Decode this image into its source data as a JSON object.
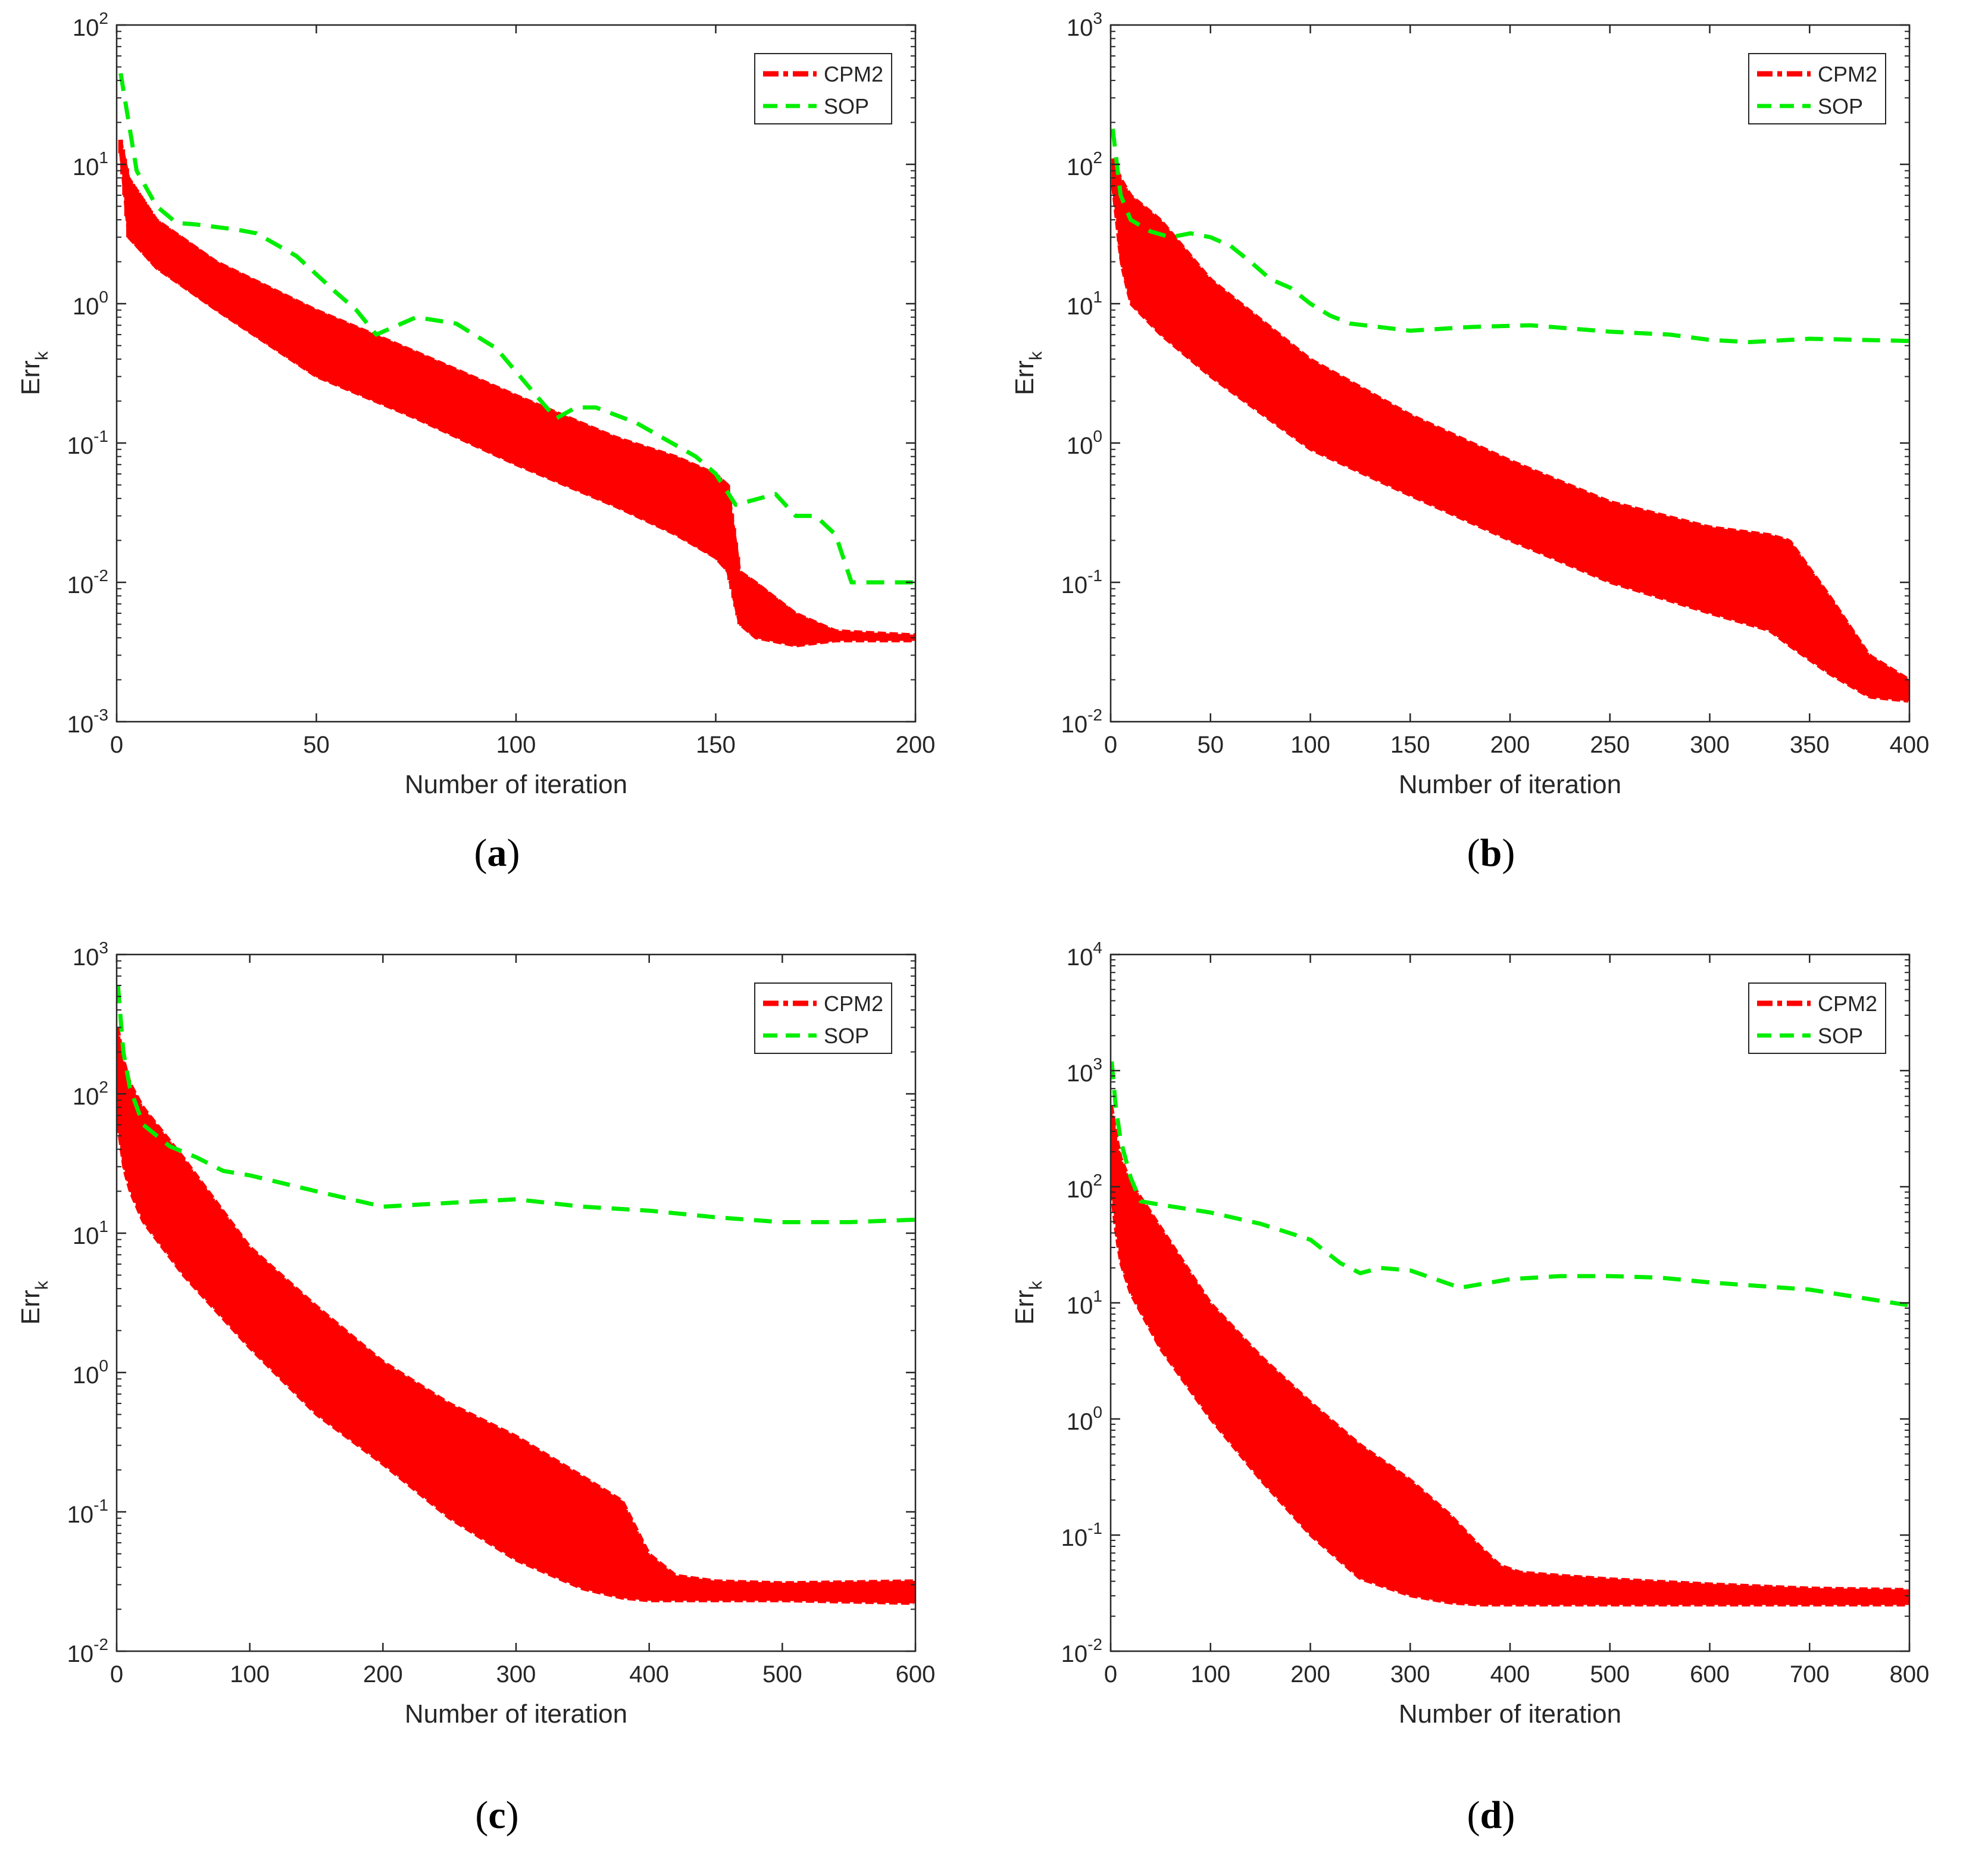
{
  "chart_data": [
    {
      "type": "line",
      "caption_letter": "a",
      "xlabel": "Number of iteration",
      "ylabel": "Err",
      "ylabel_subscript": "k",
      "xlim": [
        0,
        200
      ],
      "ylim": [
        0.001,
        100
      ],
      "yscale": "log",
      "xticks": [
        0,
        50,
        100,
        150,
        200
      ],
      "yticks": [
        {
          "base": "10",
          "exp": "-3",
          "value": 0.001
        },
        {
          "base": "10",
          "exp": "-2",
          "value": 0.01
        },
        {
          "base": "10",
          "exp": "-1",
          "value": 0.1
        },
        {
          "base": "10",
          "exp": "0",
          "value": 1
        },
        {
          "base": "10",
          "exp": "1",
          "value": 10
        },
        {
          "base": "10",
          "exp": "2",
          "value": 100
        }
      ],
      "legend_position": "top-right",
      "series": [
        {
          "name": "CPM2",
          "color": "#ff0000",
          "style": "band",
          "x": [
            1,
            3,
            10,
            25,
            50,
            75,
            100,
            125,
            140,
            150,
            153,
            156,
            160,
            170,
            180,
            200
          ],
          "upper": [
            15,
            8,
            4,
            2,
            0.9,
            0.45,
            0.22,
            0.11,
            0.08,
            0.06,
            0.05,
            0.012,
            0.01,
            0.006,
            0.0045,
            0.0042
          ],
          "lower": [
            12,
            3,
            1.8,
            0.9,
            0.3,
            0.15,
            0.07,
            0.035,
            0.022,
            0.015,
            0.012,
            0.005,
            0.004,
            0.0035,
            0.0038,
            0.0038
          ]
        },
        {
          "name": "SOP",
          "color": "#00ee00",
          "style": "dashed",
          "x": [
            1,
            5,
            10,
            15,
            20,
            30,
            35,
            45,
            55,
            60,
            65,
            75,
            85,
            95,
            105,
            110,
            115,
            120,
            130,
            145,
            150,
            155,
            165,
            170,
            175,
            180,
            184,
            200
          ],
          "y": [
            45,
            9,
            5,
            3.8,
            3.7,
            3.4,
            3.2,
            2.2,
            1.2,
            0.9,
            0.6,
            0.8,
            0.72,
            0.48,
            0.22,
            0.15,
            0.18,
            0.18,
            0.14,
            0.08,
            0.06,
            0.036,
            0.043,
            0.03,
            0.03,
            0.022,
            0.01,
            0.01
          ]
        }
      ]
    },
    {
      "type": "line",
      "caption_letter": "b",
      "xlabel": "Number of iteration",
      "ylabel": "Err",
      "ylabel_subscript": "k",
      "xlim": [
        0,
        400
      ],
      "ylim": [
        0.01,
        1000
      ],
      "yscale": "log",
      "xticks": [
        0,
        50,
        100,
        150,
        200,
        250,
        300,
        350,
        400
      ],
      "yticks": [
        {
          "base": "10",
          "exp": "-2",
          "value": 0.01
        },
        {
          "base": "10",
          "exp": "-1",
          "value": 0.1
        },
        {
          "base": "10",
          "exp": "0",
          "value": 1
        },
        {
          "base": "10",
          "exp": "1",
          "value": 10
        },
        {
          "base": "10",
          "exp": "2",
          "value": 100
        },
        {
          "base": "10",
          "exp": "3",
          "value": 1000
        }
      ],
      "legend_position": "top-right",
      "series": [
        {
          "name": "CPM2",
          "color": "#ff0000",
          "style": "band",
          "x": [
            1,
            5,
            10,
            25,
            50,
            100,
            150,
            200,
            250,
            300,
            330,
            340,
            360,
            380,
            400
          ],
          "upper": [
            110,
            80,
            60,
            40,
            15,
            4,
            1.6,
            0.75,
            0.38,
            0.25,
            0.22,
            0.2,
            0.08,
            0.03,
            0.02
          ],
          "lower": [
            70,
            20,
            10,
            6,
            3,
            0.9,
            0.42,
            0.2,
            0.1,
            0.06,
            0.045,
            0.035,
            0.022,
            0.015,
            0.014
          ]
        },
        {
          "name": "SOP",
          "color": "#00ee00",
          "style": "dashed",
          "x": [
            1,
            5,
            10,
            20,
            30,
            40,
            50,
            60,
            70,
            80,
            90,
            100,
            110,
            120,
            150,
            180,
            210,
            250,
            280,
            300,
            320,
            350,
            400
          ],
          "y": [
            180,
            60,
            40,
            33,
            30,
            32,
            30,
            26,
            20,
            15,
            13,
            10,
            8.2,
            7.2,
            6.4,
            6.8,
            7,
            6.3,
            6,
            5.5,
            5.3,
            5.6,
            5.4
          ]
        }
      ]
    },
    {
      "type": "line",
      "caption_letter": "c",
      "xlabel": "Number of iteration",
      "ylabel": "Err",
      "ylabel_subscript": "k",
      "xlim": [
        0,
        600
      ],
      "ylim": [
        0.01,
        1000
      ],
      "yscale": "log",
      "xticks": [
        0,
        100,
        200,
        300,
        400,
        500,
        600
      ],
      "yticks": [
        {
          "base": "10",
          "exp": "-2",
          "value": 0.01
        },
        {
          "base": "10",
          "exp": "-1",
          "value": 0.1
        },
        {
          "base": "10",
          "exp": "0",
          "value": 1
        },
        {
          "base": "10",
          "exp": "1",
          "value": 10
        },
        {
          "base": "10",
          "exp": "2",
          "value": 100
        },
        {
          "base": "10",
          "exp": "3",
          "value": 1000
        }
      ],
      "legend_position": "top-right",
      "series": [
        {
          "name": "CPM2",
          "color": "#ff0000",
          "style": "band",
          "x": [
            1,
            5,
            10,
            20,
            50,
            100,
            150,
            200,
            250,
            300,
            350,
            380,
            400,
            420,
            450,
            500,
            600
          ],
          "upper": [
            300,
            180,
            120,
            80,
            35,
            8,
            3,
            1.2,
            0.6,
            0.35,
            0.18,
            0.12,
            0.05,
            0.035,
            0.032,
            0.031,
            0.032
          ],
          "lower": [
            60,
            30,
            20,
            12,
            5,
            1.5,
            0.5,
            0.22,
            0.09,
            0.045,
            0.028,
            0.024,
            0.023,
            0.023,
            0.023,
            0.023,
            0.022
          ]
        },
        {
          "name": "SOP",
          "color": "#00ee00",
          "style": "dashed",
          "x": [
            1,
            5,
            10,
            20,
            40,
            60,
            80,
            100,
            150,
            200,
            250,
            300,
            350,
            400,
            450,
            500,
            550,
            600
          ],
          "y": [
            600,
            200,
            110,
            60,
            42,
            35,
            28,
            26,
            20,
            15.5,
            16.5,
            17.5,
            15.5,
            14.5,
            13,
            12,
            12,
            12.5
          ]
        }
      ]
    },
    {
      "type": "line",
      "caption_letter": "d",
      "xlabel": "Number of iteration",
      "ylabel": "Err",
      "ylabel_subscript": "k",
      "xlim": [
        0,
        800
      ],
      "ylim": [
        0.01,
        10000
      ],
      "yscale": "log",
      "xticks": [
        0,
        100,
        200,
        300,
        400,
        500,
        600,
        700,
        800
      ],
      "yticks": [
        {
          "base": "10",
          "exp": "-2",
          "value": 0.01
        },
        {
          "base": "10",
          "exp": "-1",
          "value": 0.1
        },
        {
          "base": "10",
          "exp": "0",
          "value": 1
        },
        {
          "base": "10",
          "exp": "1",
          "value": 10
        },
        {
          "base": "10",
          "exp": "2",
          "value": 100
        },
        {
          "base": "10",
          "exp": "3",
          "value": 1000
        },
        {
          "base": "10",
          "exp": "4",
          "value": 10000
        }
      ],
      "legend_position": "top-right",
      "series": [
        {
          "name": "CPM2",
          "color": "#ff0000",
          "style": "band",
          "x": [
            1,
            5,
            10,
            20,
            50,
            100,
            150,
            200,
            250,
            300,
            340,
            370,
            390,
            410,
            450,
            500,
            600,
            700,
            800
          ],
          "upper": [
            500,
            300,
            180,
            110,
            45,
            10,
            3.5,
            1.4,
            0.6,
            0.3,
            0.15,
            0.08,
            0.055,
            0.048,
            0.045,
            0.042,
            0.038,
            0.035,
            0.034
          ],
          "lower": [
            90,
            40,
            22,
            12,
            4,
            1,
            0.3,
            0.1,
            0.042,
            0.03,
            0.026,
            0.025,
            0.025,
            0.025,
            0.025,
            0.025,
            0.025,
            0.025,
            0.025
          ]
        },
        {
          "name": "SOP",
          "color": "#00ee00",
          "style": "dashed",
          "x": [
            1,
            5,
            10,
            20,
            30,
            50,
            100,
            150,
            200,
            230,
            250,
            270,
            300,
            350,
            400,
            450,
            500,
            550,
            600,
            700,
            800
          ],
          "y": [
            1200,
            500,
            250,
            120,
            75,
            70,
            60,
            48,
            35,
            22,
            18,
            20,
            19,
            13.5,
            16,
            17,
            17,
            16.5,
            15,
            13,
            9.5
          ]
        }
      ]
    }
  ]
}
